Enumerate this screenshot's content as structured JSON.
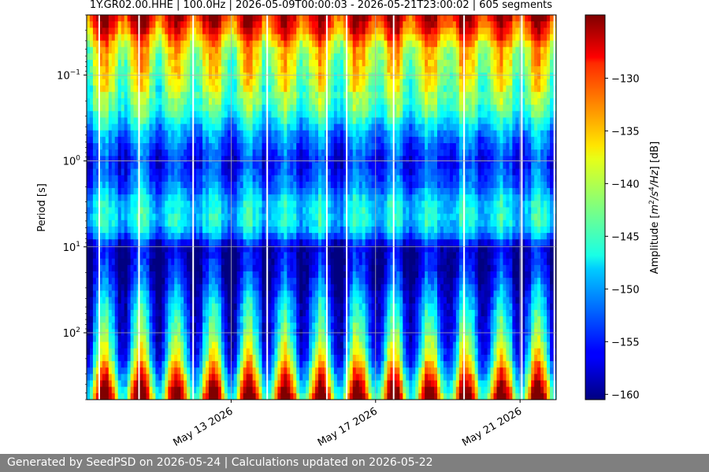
{
  "chart_data": {
    "type": "heatmap",
    "title": "1Y.GR02.00.HHE | 100.0Hz | 2026-05-09T00:00:03 - 2026-05-21T23:00:02 | 605 segments",
    "ylabel": "Period [s]",
    "y_scale": "log",
    "y_inverted": true,
    "ylim": [
      0.02,
      600
    ],
    "y_ticks": [
      {
        "value": 0.1,
        "base": "10",
        "exp": "−1"
      },
      {
        "value": 1,
        "base": "10",
        "exp": "0"
      },
      {
        "value": 10,
        "base": "10",
        "exp": "1"
      },
      {
        "value": 100,
        "base": "10",
        "exp": "2"
      }
    ],
    "xlim": [
      "2026-05-09",
      "2026-05-22T00:00"
    ],
    "x_ticks": [
      {
        "date": "2026-05-13",
        "label": "May 13 2026"
      },
      {
        "date": "2026-05-17",
        "label": "May 17 2026"
      },
      {
        "date": "2026-05-21",
        "label": "May 21 2026"
      }
    ],
    "x_tick_rotation_deg": 30,
    "colormap": "jet",
    "colorbar": {
      "label_plain": "Amplitude [",
      "label_unit": "m",
      "label_suffix": "] [dB]",
      "range": [
        -160.5,
        -124
      ],
      "ticks": [
        "−130",
        "−135",
        "−140",
        "−145",
        "−150",
        "−155",
        "−160"
      ],
      "tick_values": [
        -130,
        -135,
        -140,
        -145,
        -150,
        -155,
        -160
      ]
    },
    "grid": true,
    "data_gaps_days": [
      0.35,
      1.45,
      2.95,
      5.0,
      6.65,
      7.2,
      8.5,
      10.45,
      12.05,
      12.95
    ],
    "diurnal_peaks_at_hour": 12,
    "spectral_profile": [
      {
        "period_s": 0.02,
        "db": -127
      },
      {
        "period_s": 0.03,
        "db": -131
      },
      {
        "period_s": 0.05,
        "db": -138
      },
      {
        "period_s": 0.1,
        "db": -140
      },
      {
        "period_s": 0.25,
        "db": -144
      },
      {
        "period_s": 0.5,
        "db": -151
      },
      {
        "period_s": 1,
        "db": -155
      },
      {
        "period_s": 2,
        "db": -152
      },
      {
        "period_s": 3,
        "db": -148
      },
      {
        "period_s": 5,
        "db": -147
      },
      {
        "period_s": 7,
        "db": -150
      },
      {
        "period_s": 10,
        "db": -158
      },
      {
        "period_s": 20,
        "db": -157
      },
      {
        "period_s": 50,
        "db": -152
      },
      {
        "period_s": 100,
        "db": -150
      },
      {
        "period_s": 200,
        "db": -146
      },
      {
        "period_s": 400,
        "db": -137
      },
      {
        "period_s": 600,
        "db": -132
      }
    ]
  },
  "footer": {
    "text": "Generated by SeedPSD on 2026-05-24 | Calculations updated on 2026-05-22"
  }
}
